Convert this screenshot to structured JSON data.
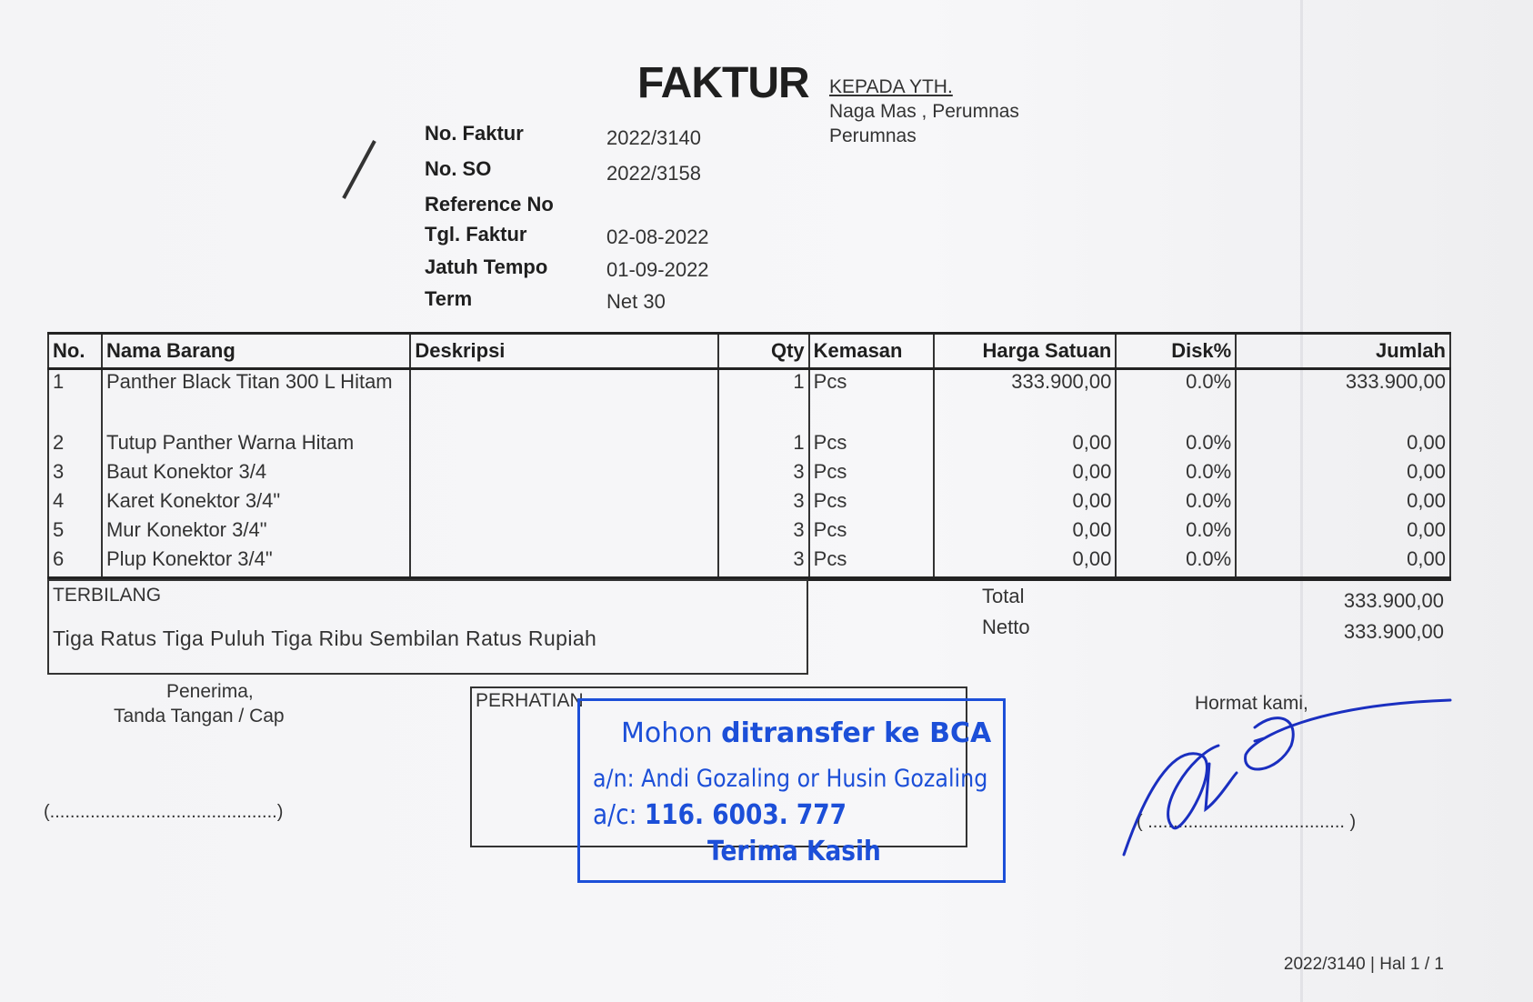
{
  "header": {
    "title": "FAKTUR",
    "recipient_label": "KEPADA YTH.",
    "recipient_lines": [
      "Naga Mas , Perumnas",
      "Perumnas"
    ]
  },
  "meta": [
    {
      "label": "No. Faktur",
      "value": "2022/3140"
    },
    {
      "label": "No. SO",
      "value": "2022/3158"
    },
    {
      "label": "Reference No",
      "value": ""
    },
    {
      "label": "Tgl. Faktur",
      "value": "02-08-2022"
    },
    {
      "label": "Jatuh Tempo",
      "value": "01-09-2022"
    },
    {
      "label": "Term",
      "value": "Net 30"
    }
  ],
  "table": {
    "headers": [
      "No.",
      "Nama Barang",
      "Deskripsi",
      "Qty",
      "Kemasan",
      "Harga Satuan",
      "Disk%",
      "Jumlah"
    ],
    "rows": [
      [
        "1",
        "Panther Black Titan 300 L Hitam",
        "",
        "1",
        "Pcs",
        "333.900,00",
        "0.0%",
        "333.900,00"
      ],
      [
        "2",
        "Tutup Panther Warna Hitam",
        "",
        "1",
        "Pcs",
        "0,00",
        "0.0%",
        "0,00"
      ],
      [
        "3",
        "Baut Konektor 3/4",
        "",
        "3",
        "Pcs",
        "0,00",
        "0.0%",
        "0,00"
      ],
      [
        "4",
        "Karet Konektor 3/4\"",
        "",
        "3",
        "Pcs",
        "0,00",
        "0.0%",
        "0,00"
      ],
      [
        "5",
        "Mur Konektor 3/4\"",
        "",
        "3",
        "Pcs",
        "0,00",
        "0.0%",
        "0,00"
      ],
      [
        "6",
        "Plup Konektor 3/4\"",
        "",
        "3",
        "Pcs",
        "0,00",
        "0.0%",
        "0,00"
      ]
    ]
  },
  "terbilang": {
    "label": "TERBILANG",
    "text": "Tiga Ratus Tiga Puluh Tiga Ribu Sembilan Ratus Rupiah"
  },
  "totals": {
    "total_label": "Total",
    "total": "333.900,00",
    "netto_label": "Netto",
    "netto": "333.900,00"
  },
  "receiver": {
    "line1": "Penerima,",
    "line2": "Tanda Tangan / Cap",
    "sign_line": "(.............................................)"
  },
  "notice": {
    "label": "PERHATIAN"
  },
  "stamp": {
    "line1_a": "Mohon ",
    "line1_b": "ditransfer ke BCA",
    "line2": "a/n: Andi Gozaling or Husin Gozaling",
    "line3_a": "a/c: ",
    "line3_b": "116. 6003. 777",
    "line4": "Terima Kasih",
    "color": "#1c4fd8"
  },
  "sender": {
    "label": "Hormat kami,",
    "sign_line": "( ....................................... )"
  },
  "footer": {
    "page_ref": "2022/3140 | Hal 1 / 1"
  }
}
